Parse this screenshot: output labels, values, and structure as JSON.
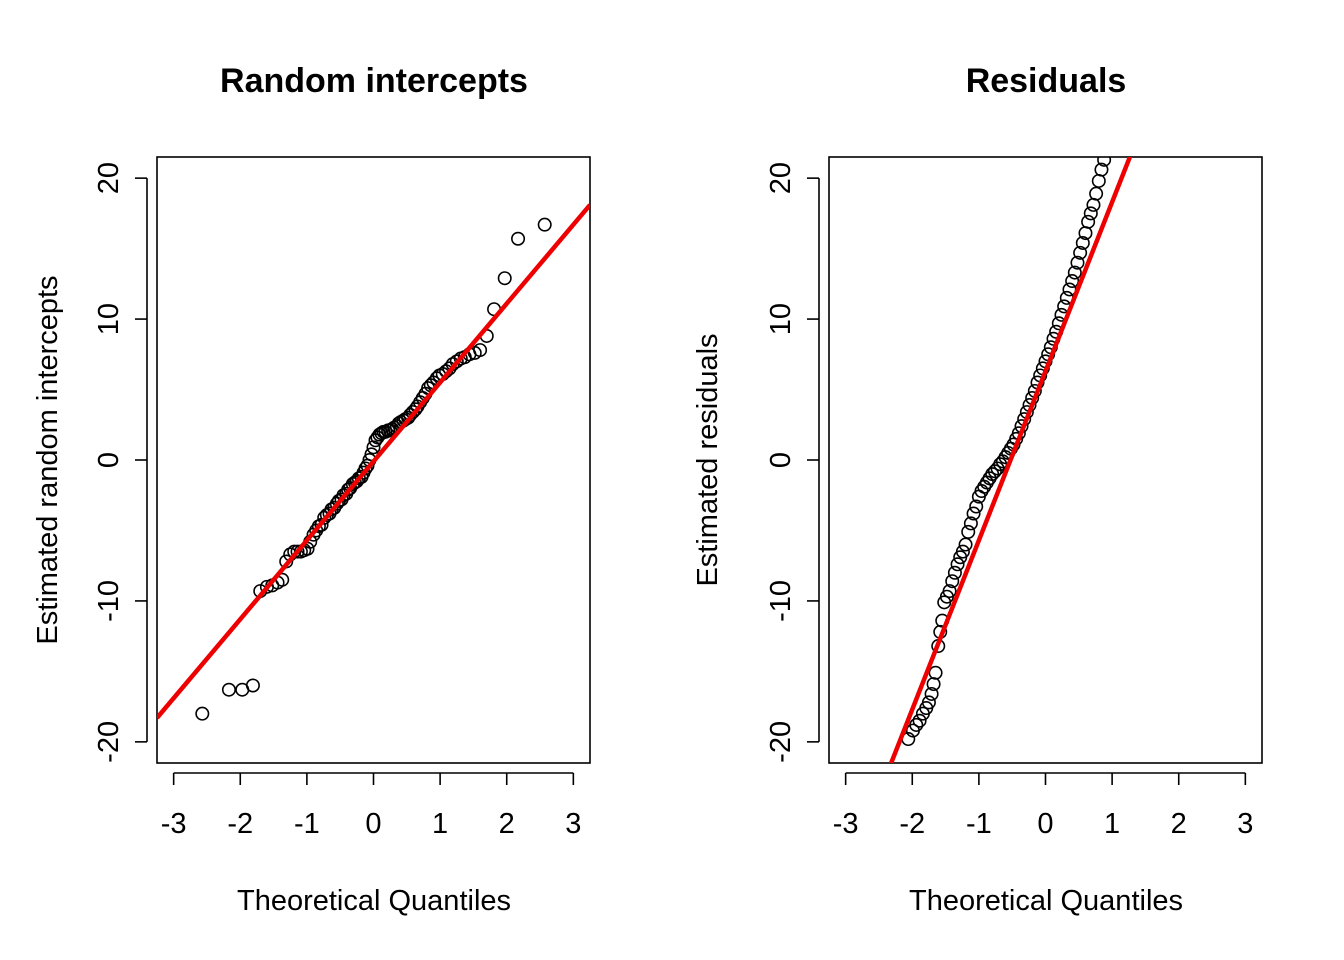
{
  "colors": {
    "points": "#000000",
    "reference_line": "#ee0000",
    "background": "#ffffff"
  },
  "chart_data": [
    {
      "type": "scatter",
      "title": "Random intercepts",
      "xlabel": "Theoretical Quantiles",
      "ylabel": "Estimated random intercepts",
      "xlim": [
        -3.25,
        3.25
      ],
      "ylim": [
        -21.5,
        21.5
      ],
      "x_ticks": [
        -3,
        -2,
        -1,
        0,
        1,
        2,
        3
      ],
      "x_tick_labels": [
        "-3",
        "-2",
        "-1",
        "0",
        "1",
        "2",
        "3"
      ],
      "y_ticks": [
        -20,
        -10,
        0,
        10,
        20
      ],
      "y_tick_labels": [
        "-20",
        "-10",
        "0",
        "10",
        "20"
      ],
      "grid": false,
      "legend": "none",
      "reference_line": {
        "intercept": -0.1,
        "slope": 5.6
      },
      "points": [
        [
          -2.57,
          -18.0
        ],
        [
          -2.17,
          -16.3
        ],
        [
          -1.97,
          -16.3
        ],
        [
          -1.81,
          -16.0
        ],
        [
          -1.7,
          -9.3
        ],
        [
          -1.6,
          -9.0
        ],
        [
          -1.52,
          -8.9
        ],
        [
          -1.44,
          -8.7
        ],
        [
          -1.37,
          -8.5
        ],
        [
          -1.31,
          -7.2
        ],
        [
          -1.25,
          -6.7
        ],
        [
          -1.19,
          -6.5
        ],
        [
          -1.14,
          -6.5
        ],
        [
          -1.09,
          -6.5
        ],
        [
          -1.04,
          -6.4
        ],
        [
          -0.99,
          -6.3
        ],
        [
          -0.95,
          -5.8
        ],
        [
          -0.9,
          -5.3
        ],
        [
          -0.86,
          -5.0
        ],
        [
          -0.82,
          -4.7
        ],
        [
          -0.78,
          -4.6
        ],
        [
          -0.74,
          -4.1
        ],
        [
          -0.7,
          -3.9
        ],
        [
          -0.66,
          -3.8
        ],
        [
          -0.63,
          -3.5
        ],
        [
          -0.59,
          -3.4
        ],
        [
          -0.55,
          -3.1
        ],
        [
          -0.52,
          -2.9
        ],
        [
          -0.48,
          -2.8
        ],
        [
          -0.45,
          -2.5
        ],
        [
          -0.41,
          -2.4
        ],
        [
          -0.38,
          -2.1
        ],
        [
          -0.35,
          -2.0
        ],
        [
          -0.31,
          -1.7
        ],
        [
          -0.28,
          -1.6
        ],
        [
          -0.25,
          -1.5
        ],
        [
          -0.22,
          -1.3
        ],
        [
          -0.18,
          -1.2
        ],
        [
          -0.15,
          -0.9
        ],
        [
          -0.12,
          -0.6
        ],
        [
          -0.09,
          -0.4
        ],
        [
          -0.06,
          0.0
        ],
        [
          -0.03,
          0.4
        ],
        [
          0.0,
          0.9
        ],
        [
          0.03,
          1.4
        ],
        [
          0.06,
          1.6
        ],
        [
          0.09,
          1.8
        ],
        [
          0.12,
          1.9
        ],
        [
          0.15,
          2.0
        ],
        [
          0.18,
          2.0
        ],
        [
          0.22,
          2.1
        ],
        [
          0.25,
          2.1
        ],
        [
          0.28,
          2.2
        ],
        [
          0.31,
          2.3
        ],
        [
          0.35,
          2.4
        ],
        [
          0.38,
          2.6
        ],
        [
          0.41,
          2.7
        ],
        [
          0.45,
          2.8
        ],
        [
          0.48,
          2.9
        ],
        [
          0.52,
          3.0
        ],
        [
          0.55,
          3.2
        ],
        [
          0.59,
          3.4
        ],
        [
          0.63,
          3.6
        ],
        [
          0.66,
          3.8
        ],
        [
          0.7,
          4.1
        ],
        [
          0.74,
          4.4
        ],
        [
          0.78,
          4.7
        ],
        [
          0.82,
          5.1
        ],
        [
          0.86,
          5.3
        ],
        [
          0.9,
          5.5
        ],
        [
          0.95,
          5.8
        ],
        [
          0.99,
          6.0
        ],
        [
          1.04,
          6.1
        ],
        [
          1.09,
          6.3
        ],
        [
          1.14,
          6.5
        ],
        [
          1.19,
          6.8
        ],
        [
          1.25,
          7.0
        ],
        [
          1.31,
          7.2
        ],
        [
          1.37,
          7.3
        ],
        [
          1.44,
          7.5
        ],
        [
          1.52,
          7.6
        ],
        [
          1.6,
          7.8
        ],
        [
          1.7,
          8.8
        ],
        [
          1.81,
          10.7
        ],
        [
          1.97,
          12.9
        ],
        [
          2.17,
          15.7
        ],
        [
          2.57,
          16.7
        ]
      ]
    },
    {
      "type": "scatter",
      "title": "Residuals",
      "xlabel": "Theoretical Quantiles",
      "ylabel": "Estimated residuals",
      "xlim": [
        -3.25,
        3.25
      ],
      "ylim": [
        -21.5,
        21.5
      ],
      "x_ticks": [
        -3,
        -2,
        -1,
        0,
        1,
        2,
        3
      ],
      "x_tick_labels": [
        "-3",
        "-2",
        "-1",
        "0",
        "1",
        "2",
        "3"
      ],
      "y_ticks": [
        -20,
        -10,
        0,
        10,
        20
      ],
      "y_tick_labels": [
        "-20",
        "-10",
        "0",
        "10",
        "20"
      ],
      "grid": false,
      "legend": "none",
      "reference_line": {
        "intercept": 6.3,
        "slope": 12.0
      },
      "points": [
        [
          -2.06,
          -19.8
        ],
        [
          -1.99,
          -19.2
        ],
        [
          -1.94,
          -18.8
        ],
        [
          -1.89,
          -18.5
        ],
        [
          -1.84,
          -18.0
        ],
        [
          -1.79,
          -17.6
        ],
        [
          -1.75,
          -17.2
        ],
        [
          -1.71,
          -16.6
        ],
        [
          -1.68,
          -15.9
        ],
        [
          -1.65,
          -15.1
        ],
        [
          -1.61,
          -13.2
        ],
        [
          -1.58,
          -12.2
        ],
        [
          -1.55,
          -11.4
        ],
        [
          -1.52,
          -10.1
        ],
        [
          -1.48,
          -9.7
        ],
        [
          -1.44,
          -9.3
        ],
        [
          -1.4,
          -8.6
        ],
        [
          -1.36,
          -8.0
        ],
        [
          -1.32,
          -7.4
        ],
        [
          -1.28,
          -6.9
        ],
        [
          -1.24,
          -6.5
        ],
        [
          -1.2,
          -6.0
        ],
        [
          -1.16,
          -5.1
        ],
        [
          -1.12,
          -4.5
        ],
        [
          -1.08,
          -3.8
        ],
        [
          -1.04,
          -3.3
        ],
        [
          -1.0,
          -2.6
        ],
        [
          -0.96,
          -2.2
        ],
        [
          -0.92,
          -1.9
        ],
        [
          -0.88,
          -1.6
        ],
        [
          -0.84,
          -1.3
        ],
        [
          -0.8,
          -1.0
        ],
        [
          -0.76,
          -0.8
        ],
        [
          -0.72,
          -0.6
        ],
        [
          -0.68,
          -0.3
        ],
        [
          -0.64,
          -0.1
        ],
        [
          -0.6,
          0.2
        ],
        [
          -0.56,
          0.5
        ],
        [
          -0.52,
          0.8
        ],
        [
          -0.48,
          1.1
        ],
        [
          -0.44,
          1.5
        ],
        [
          -0.4,
          1.9
        ],
        [
          -0.36,
          2.4
        ],
        [
          -0.32,
          2.9
        ],
        [
          -0.28,
          3.4
        ],
        [
          -0.24,
          3.9
        ],
        [
          -0.2,
          4.4
        ],
        [
          -0.16,
          4.9
        ],
        [
          -0.12,
          5.5
        ],
        [
          -0.08,
          6.0
        ],
        [
          -0.04,
          6.5
        ],
        [
          0.0,
          7.0
        ],
        [
          0.04,
          7.5
        ],
        [
          0.08,
          8.0
        ],
        [
          0.12,
          8.6
        ],
        [
          0.16,
          9.1
        ],
        [
          0.2,
          9.7
        ],
        [
          0.24,
          10.3
        ],
        [
          0.28,
          10.9
        ],
        [
          0.32,
          11.5
        ],
        [
          0.36,
          12.1
        ],
        [
          0.4,
          12.7
        ],
        [
          0.44,
          13.3
        ],
        [
          0.48,
          14.0
        ],
        [
          0.52,
          14.7
        ],
        [
          0.56,
          15.4
        ],
        [
          0.6,
          16.1
        ],
        [
          0.64,
          16.9
        ],
        [
          0.68,
          17.5
        ],
        [
          0.72,
          18.1
        ],
        [
          0.76,
          18.9
        ],
        [
          0.8,
          19.8
        ],
        [
          0.84,
          20.6
        ],
        [
          0.88,
          21.3
        ]
      ]
    }
  ]
}
